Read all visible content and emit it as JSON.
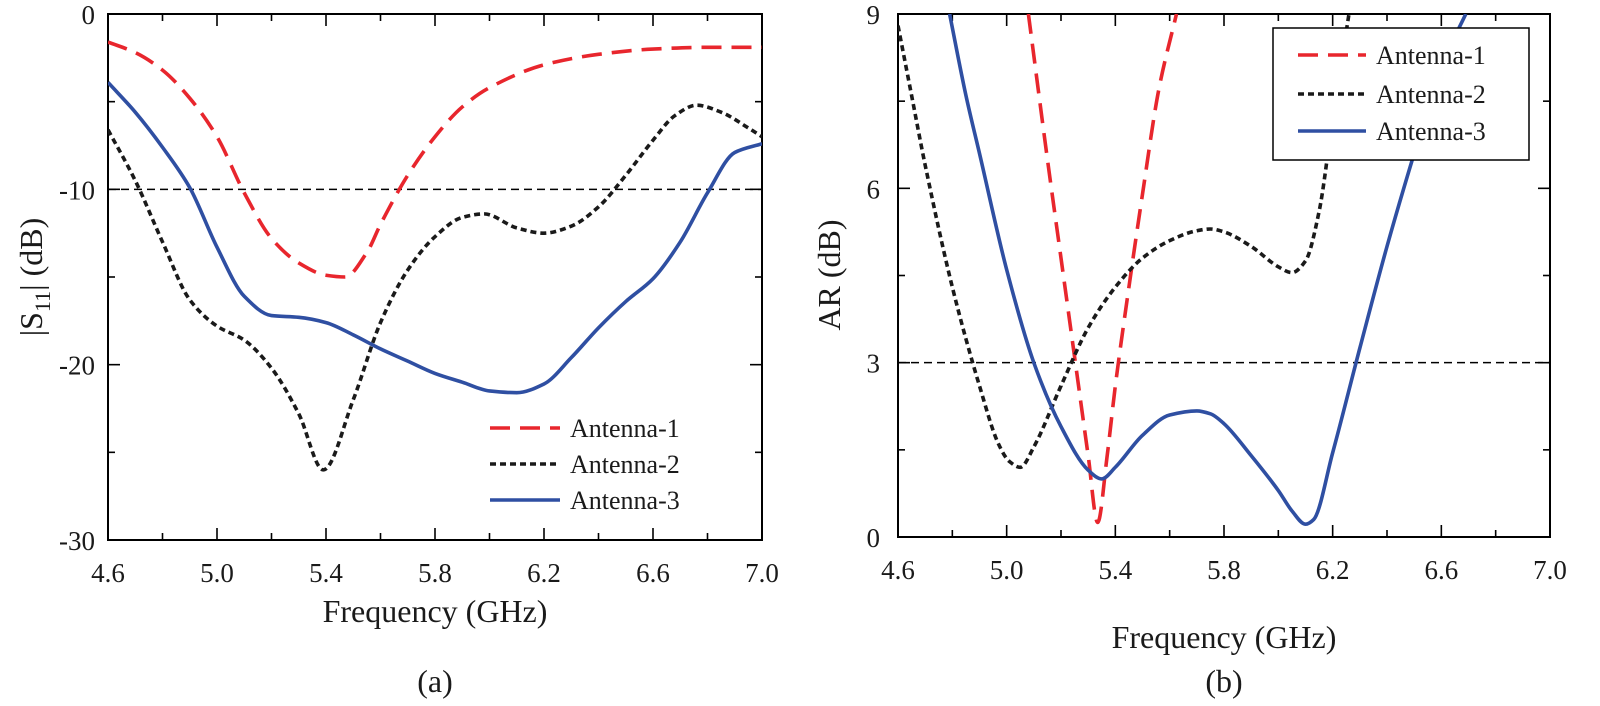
{
  "chart_data": [
    {
      "id": "a",
      "type": "line",
      "caption": "(a)",
      "xlabel": "Frequency (GHz)",
      "ylabel_main": "|S",
      "ylabel_sub": "11",
      "ylabel_tail": "| (dB)",
      "xlim": [
        4.6,
        7.0
      ],
      "ylim": [
        -30,
        0
      ],
      "xticks": [
        4.6,
        5.0,
        5.4,
        5.8,
        6.2,
        6.6,
        7.0
      ],
      "xtick_labels": [
        "4.6",
        "5.0",
        "5.4",
        "5.8",
        "6.2",
        "6.6",
        "7.0"
      ],
      "yticks": [
        -30,
        -20,
        -10,
        0
      ],
      "ytick_labels": [
        "-30",
        "-20",
        "-10",
        "0"
      ],
      "ref_line": -10,
      "legend_position": "bottom-right",
      "series": [
        {
          "name": "Antenna-1",
          "color": "#e8262d",
          "dash": "20 10",
          "x": [
            4.6,
            4.7,
            4.8,
            4.9,
            5.0,
            5.1,
            5.2,
            5.3,
            5.4,
            5.47,
            5.55,
            5.6,
            5.7,
            5.8,
            5.9,
            6.0,
            6.2,
            6.4,
            6.6,
            6.8,
            7.0
          ],
          "y": [
            -1.6,
            -2.2,
            -3.2,
            -4.8,
            -7.0,
            -10.2,
            -12.8,
            -14.2,
            -14.9,
            -15.0,
            -13.6,
            -12.0,
            -9.2,
            -7.0,
            -5.3,
            -4.2,
            -2.9,
            -2.3,
            -2.0,
            -1.9,
            -1.9
          ]
        },
        {
          "name": "Antenna-2",
          "color": "#1a1a1a",
          "dash": "6 4",
          "x": [
            4.6,
            4.7,
            4.8,
            4.9,
            5.0,
            5.1,
            5.2,
            5.3,
            5.39,
            5.5,
            5.6,
            5.7,
            5.8,
            5.9,
            5.98,
            6.1,
            6.2,
            6.3,
            6.4,
            6.5,
            6.6,
            6.68,
            6.76,
            6.85,
            6.95,
            7.0
          ],
          "y": [
            -6.6,
            -9.5,
            -13.0,
            -16.3,
            -17.8,
            -18.6,
            -20.2,
            -22.8,
            -26.0,
            -22.0,
            -17.6,
            -14.6,
            -12.7,
            -11.6,
            -11.4,
            -12.2,
            -12.5,
            -12.1,
            -11.0,
            -9.2,
            -7.2,
            -5.8,
            -5.2,
            -5.6,
            -6.5,
            -7.0
          ]
        },
        {
          "name": "Antenna-3",
          "color": "#2f4fa2",
          "dash": "",
          "x": [
            4.6,
            4.7,
            4.8,
            4.9,
            5.0,
            5.1,
            5.2,
            5.3,
            5.4,
            5.5,
            5.6,
            5.7,
            5.8,
            5.9,
            6.0,
            6.1,
            6.2,
            6.3,
            6.4,
            6.5,
            6.6,
            6.7,
            6.8,
            6.9,
            7.0
          ],
          "y": [
            -3.9,
            -5.6,
            -7.6,
            -9.9,
            -13.3,
            -16.1,
            -17.2,
            -17.3,
            -17.6,
            -18.3,
            -19.1,
            -19.8,
            -20.5,
            -21.0,
            -21.5,
            -21.6,
            -21.1,
            -19.6,
            -17.9,
            -16.4,
            -15.1,
            -13.0,
            -10.2,
            -7.9,
            -7.4
          ]
        }
      ]
    },
    {
      "id": "b",
      "type": "line",
      "caption": "(b)",
      "xlabel": "Frequency (GHz)",
      "ylabel_main": "AR (dB)",
      "xlim": [
        4.6,
        7.0
      ],
      "ylim": [
        0,
        9
      ],
      "xticks": [
        4.6,
        5.0,
        5.4,
        5.8,
        6.2,
        6.6,
        7.0
      ],
      "xtick_labels": [
        "4.6",
        "5.0",
        "5.4",
        "5.8",
        "6.2",
        "6.6",
        "7.0"
      ],
      "yticks": [
        0,
        3,
        6,
        9
      ],
      "ytick_labels": [
        "0",
        "3",
        "6",
        "9"
      ],
      "ref_line": 3,
      "legend_position": "top-right",
      "series": [
        {
          "name": "Antenna-1",
          "color": "#e8262d",
          "dash": "20 10",
          "x": [
            5.08,
            5.15,
            5.2,
            5.25,
            5.3,
            5.335,
            5.37,
            5.4,
            5.45,
            5.5,
            5.56,
            5.625
          ],
          "y": [
            9.0,
            6.5,
            4.8,
            3.1,
            1.4,
            0.25,
            1.4,
            2.6,
            4.3,
            5.9,
            7.7,
            9.0
          ]
        },
        {
          "name": "Antenna-2",
          "color": "#1a1a1a",
          "dash": "6 4",
          "x": [
            4.6,
            4.65,
            4.7,
            4.8,
            4.9,
            4.97,
            5.01,
            5.05,
            5.1,
            5.2,
            5.3,
            5.4,
            5.5,
            5.6,
            5.7,
            5.75,
            5.8,
            5.9,
            6.0,
            6.05,
            6.1,
            6.15,
            6.2,
            6.26
          ],
          "y": [
            8.8,
            7.6,
            6.4,
            4.3,
            2.6,
            1.6,
            1.3,
            1.2,
            1.55,
            2.6,
            3.6,
            4.3,
            4.8,
            5.1,
            5.27,
            5.3,
            5.25,
            5.0,
            4.65,
            4.55,
            4.75,
            5.6,
            7.2,
            9.0
          ]
        },
        {
          "name": "Antenna-3",
          "color": "#2f4fa2",
          "dash": "",
          "x": [
            4.79,
            4.85,
            4.9,
            5.0,
            5.1,
            5.2,
            5.3,
            5.35,
            5.4,
            5.5,
            5.6,
            5.7,
            5.75,
            5.8,
            5.9,
            6.0,
            6.05,
            6.1,
            6.13,
            6.2,
            6.3,
            6.4,
            6.5,
            6.6,
            6.69
          ],
          "y": [
            9.0,
            7.6,
            6.6,
            4.6,
            3.0,
            1.9,
            1.15,
            1.0,
            1.2,
            1.75,
            2.1,
            2.17,
            2.12,
            1.95,
            1.4,
            0.8,
            0.45,
            0.22,
            0.3,
            1.45,
            3.25,
            5.0,
            6.6,
            8.1,
            9.0
          ]
        }
      ]
    }
  ]
}
